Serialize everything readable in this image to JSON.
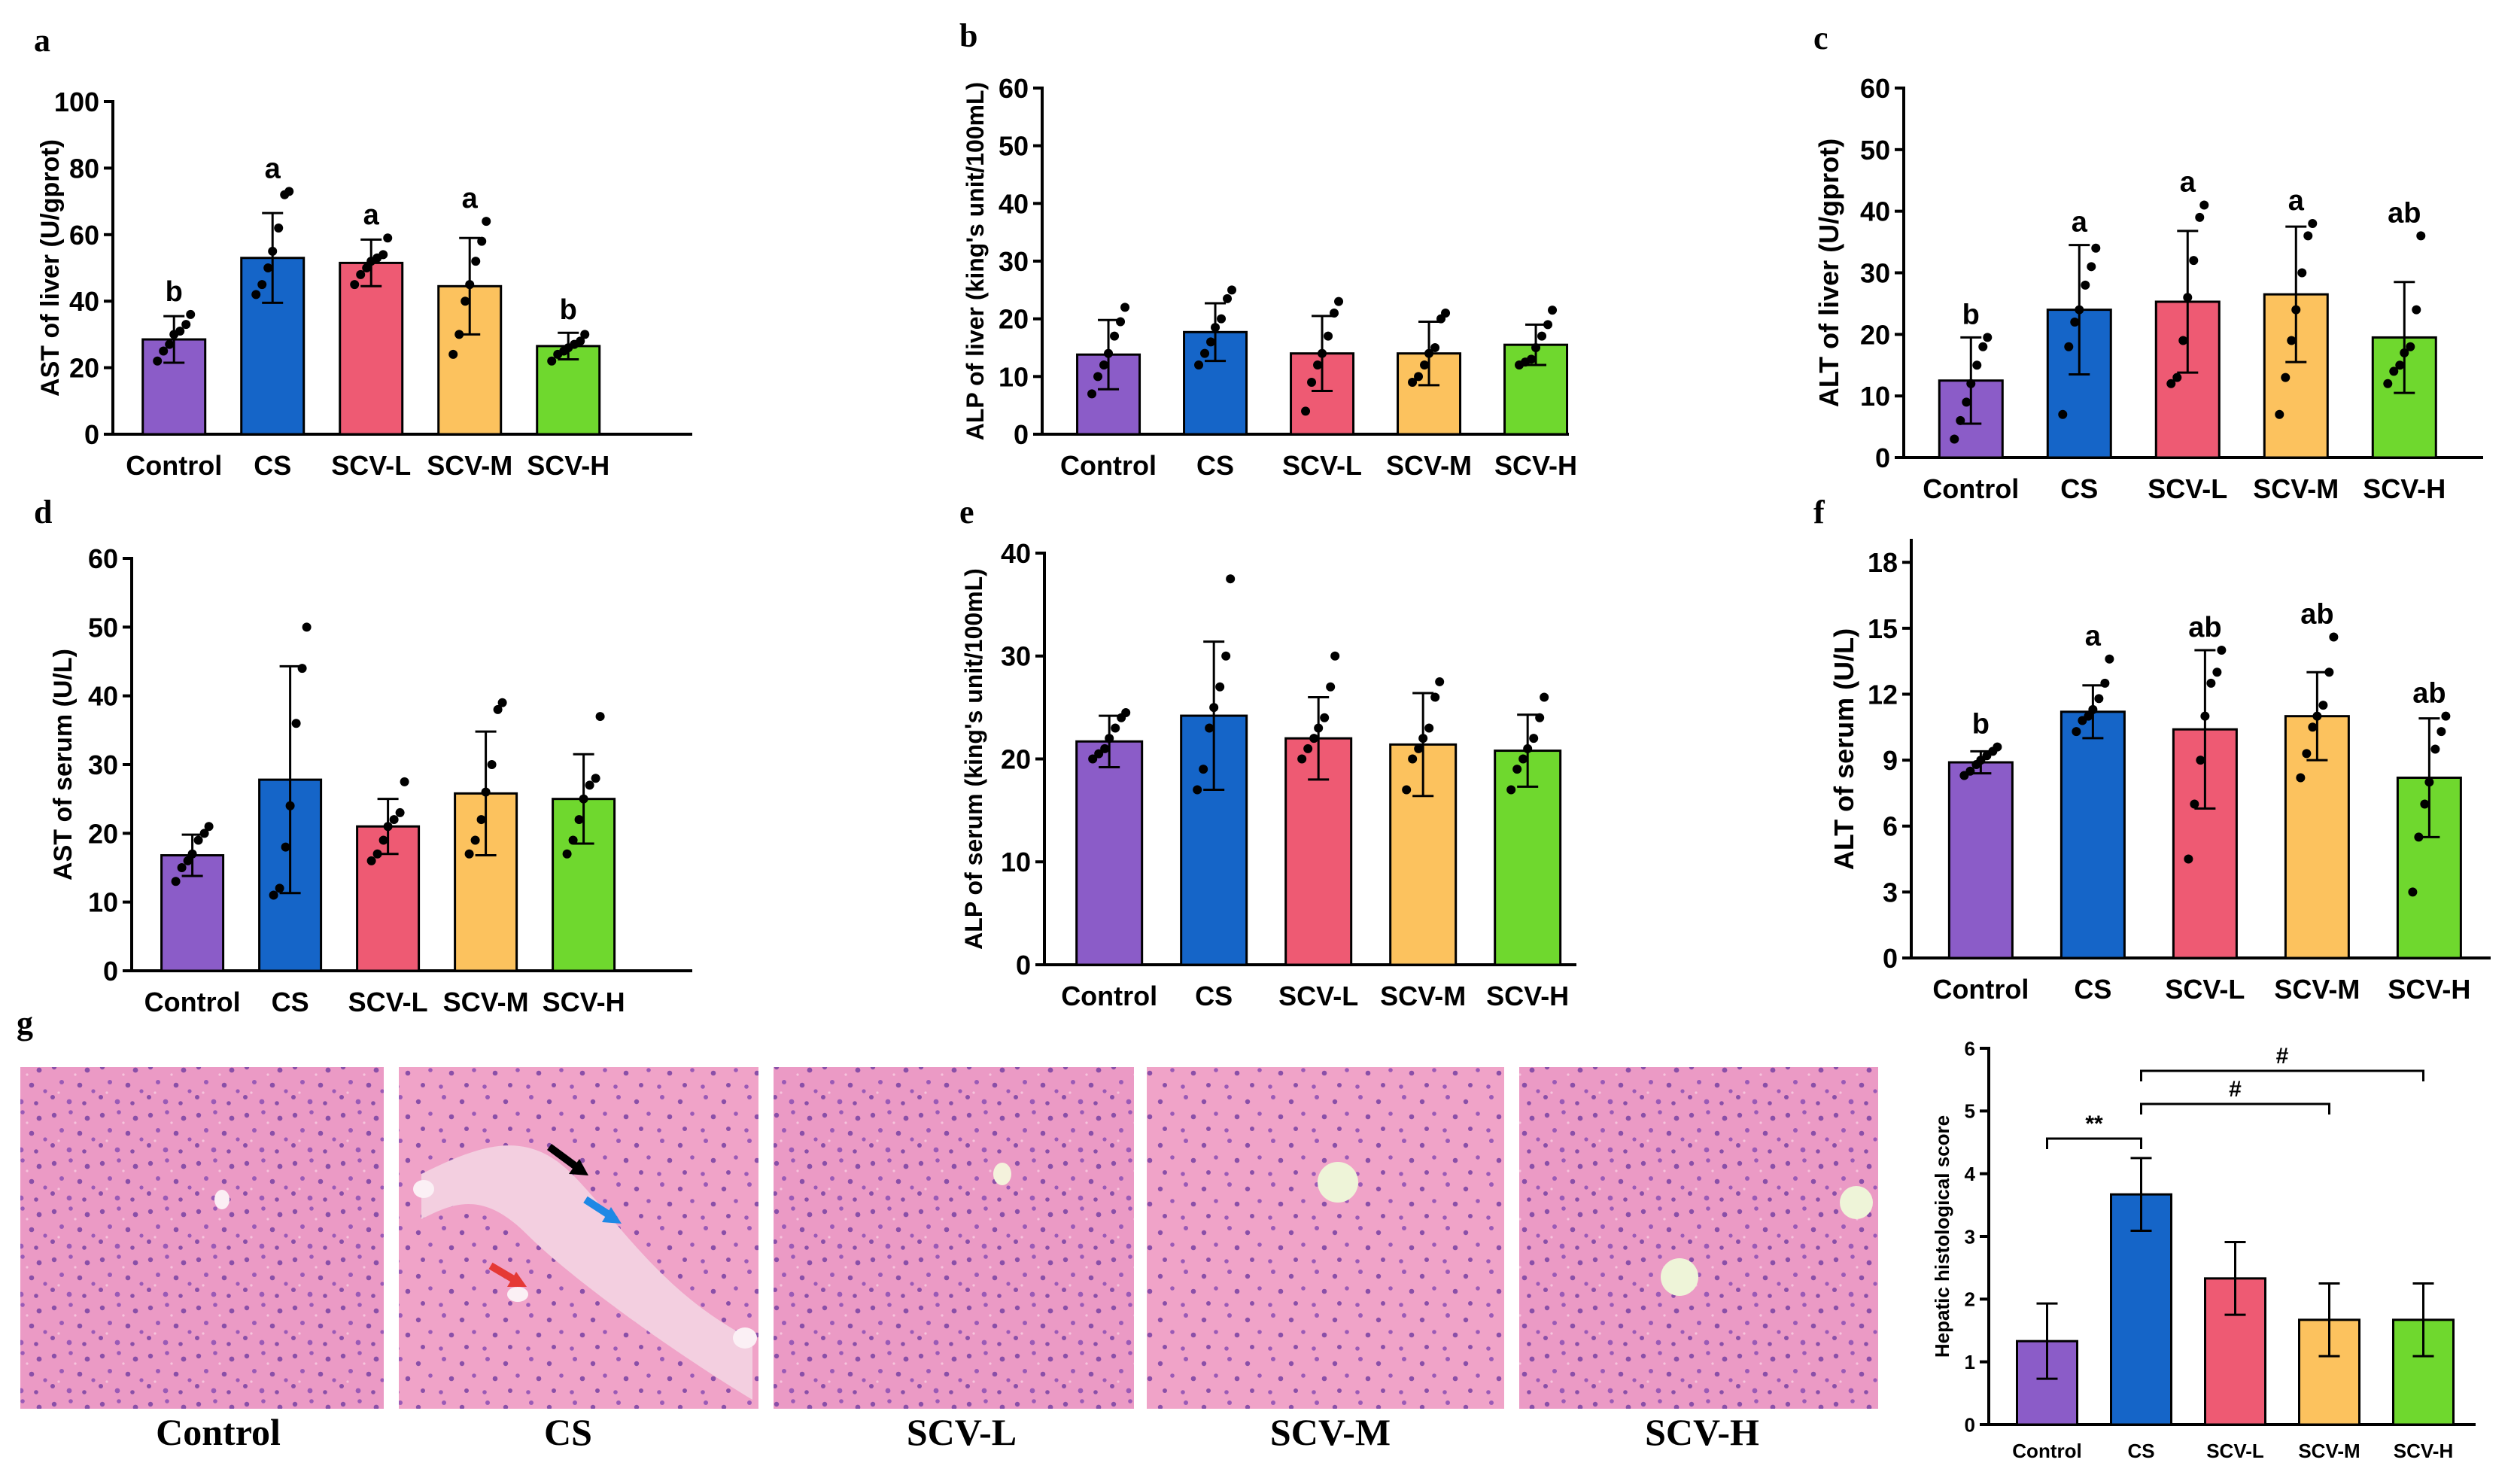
{
  "colors": {
    "Control": "#8B5CC8",
    "CS": "#1565C8",
    "SCV-L": "#EE5A73",
    "SCV-M": "#FCC25E",
    "SCV-H": "#6FD82E"
  },
  "chart_data": [
    {
      "id": "a",
      "letter": "a",
      "type": "bar",
      "categories": [
        "Control",
        "CS",
        "SCV-L",
        "SCV-M",
        "SCV-H"
      ],
      "values": [
        28.5,
        53,
        51.5,
        44.5,
        26.5
      ],
      "errors": [
        7,
        13.5,
        7,
        14.5,
        4
      ],
      "points": [
        [
          22,
          25,
          27,
          30,
          31,
          33,
          36
        ],
        [
          42,
          45,
          50,
          55,
          62,
          72,
          73
        ],
        [
          45,
          48,
          50,
          52,
          53,
          54,
          59
        ],
        [
          24,
          30,
          40,
          45,
          52,
          58,
          64
        ],
        [
          22,
          24,
          25,
          26,
          27,
          28,
          30
        ]
      ],
      "sig": [
        "b",
        "a",
        "a",
        "a",
        "b"
      ],
      "ylabel": "AST of liver (U/gprot)",
      "ylim": [
        0,
        100
      ],
      "yticks": [
        0,
        20,
        40,
        60,
        80,
        100
      ]
    },
    {
      "id": "b",
      "letter": "b",
      "type": "bar",
      "categories": [
        "Control",
        "CS",
        "SCV-L",
        "SCV-M",
        "SCV-H"
      ],
      "values": [
        13.8,
        17.7,
        14,
        14,
        15.5
      ],
      "errors": [
        6,
        5,
        6.5,
        5.5,
        3.5
      ],
      "points": [
        [
          7,
          10,
          12,
          14,
          17,
          19.5,
          22
        ],
        [
          12,
          14,
          16,
          18.5,
          20,
          23.5,
          25
        ],
        [
          4,
          9,
          12,
          14,
          17,
          21,
          23
        ],
        [
          9,
          10,
          12,
          14,
          15,
          20,
          21
        ],
        [
          12,
          12.5,
          13,
          15,
          17,
          19,
          21.5
        ]
      ],
      "sig": [
        "",
        "",
        "",
        "",
        ""
      ],
      "ylabel": "ALP of liver (king's unit/100mL)",
      "ylim": [
        0,
        60
      ],
      "yticks": [
        0,
        10,
        20,
        30,
        40,
        50,
        60
      ]
    },
    {
      "id": "c",
      "letter": "c",
      "type": "bar",
      "categories": [
        "Control",
        "CS",
        "SCV-L",
        "SCV-M",
        "SCV-H"
      ],
      "values": [
        12.5,
        24,
        25.3,
        26.5,
        19.5
      ],
      "errors": [
        7,
        10.5,
        11.5,
        11,
        9
      ],
      "points": [
        [
          3,
          6,
          9,
          12,
          15,
          18,
          19.5
        ],
        [
          7,
          18,
          22,
          24,
          28,
          31,
          34
        ],
        [
          12,
          13,
          19,
          26,
          32,
          39,
          41
        ],
        [
          7,
          13,
          19,
          24,
          30,
          36,
          38
        ],
        [
          12,
          14,
          15,
          17,
          18,
          24,
          36
        ]
      ],
      "sig": [
        "b",
        "a",
        "a",
        "a",
        "ab"
      ],
      "ylabel": "ALT of liver (U/gprot)",
      "ylim": [
        0,
        60
      ],
      "yticks": [
        0,
        10,
        20,
        30,
        40,
        50,
        60
      ]
    },
    {
      "id": "d",
      "letter": "d",
      "type": "bar",
      "categories": [
        "Control",
        "CS",
        "SCV-L",
        "SCV-M",
        "SCV-H"
      ],
      "values": [
        16.8,
        27.8,
        21,
        25.8,
        25
      ],
      "errors": [
        3,
        16.5,
        4,
        9,
        6.5
      ],
      "points": [
        [
          13,
          15,
          16,
          17,
          19,
          20,
          21
        ],
        [
          11,
          12,
          18,
          24,
          36,
          44,
          50
        ],
        [
          16,
          17,
          19,
          21,
          22,
          23,
          27.5
        ],
        [
          17,
          19,
          22,
          26,
          30,
          38,
          39
        ],
        [
          17,
          19,
          22,
          25,
          27,
          28,
          37
        ]
      ],
      "sig": [
        "",
        "",
        "",
        "",
        ""
      ],
      "ylabel": "AST of serum (U/L)",
      "ylim": [
        0,
        60
      ],
      "yticks": [
        0,
        10,
        20,
        30,
        40,
        50,
        60
      ]
    },
    {
      "id": "e",
      "letter": "e",
      "type": "bar",
      "categories": [
        "Control",
        "CS",
        "SCV-L",
        "SCV-M",
        "SCV-H"
      ],
      "values": [
        21.7,
        24.2,
        22,
        21.4,
        20.8
      ],
      "errors": [
        2.5,
        7.2,
        4,
        5,
        3.5
      ],
      "points": [
        [
          20,
          20.5,
          21,
          22,
          23,
          24,
          24.5
        ],
        [
          17,
          19,
          23,
          25,
          27,
          30,
          37.5
        ],
        [
          20,
          21,
          22,
          23,
          24,
          27,
          30
        ],
        [
          17,
          20,
          21,
          22,
          23,
          26,
          27.5
        ],
        [
          17,
          19,
          20,
          21,
          22,
          24,
          26
        ]
      ],
      "sig": [
        "",
        "",
        "",
        "",
        ""
      ],
      "ylabel": "ALP of serum (king's unit/100mL)",
      "ylim": [
        0,
        40
      ],
      "yticks": [
        0,
        10,
        20,
        30,
        40
      ]
    },
    {
      "id": "f",
      "letter": "f",
      "type": "bar",
      "categories": [
        "Control",
        "CS",
        "SCV-L",
        "SCV-M",
        "SCV-H"
      ],
      "values": [
        8.9,
        11.2,
        10.4,
        11,
        8.2
      ],
      "errors": [
        0.5,
        1.2,
        3.6,
        2,
        2.7
      ],
      "points": [
        [
          8.3,
          8.5,
          8.8,
          9,
          9.2,
          9.4,
          9.6
        ],
        [
          10.3,
          10.8,
          11,
          11.3,
          11.8,
          12.5,
          13.6
        ],
        [
          4.5,
          7,
          9,
          11,
          12.5,
          13,
          14
        ],
        [
          8.2,
          9.3,
          10.5,
          11,
          11.5,
          13,
          14.6
        ],
        [
          3,
          5.5,
          7,
          8,
          9.5,
          10.3,
          11
        ]
      ],
      "sig": [
        "b",
        "a",
        "ab",
        "ab",
        "ab"
      ],
      "ylabel": "ALT of serum (U/L)",
      "ylim": [
        0,
        19
      ],
      "yticks": [
        0,
        3,
        6,
        9,
        12,
        15,
        18
      ]
    },
    {
      "id": "g",
      "letter": "",
      "type": "bar",
      "categories": [
        "Control",
        "CS",
        "SCV-L",
        "SCV-M",
        "SCV-H"
      ],
      "values": [
        1.33,
        3.67,
        2.33,
        1.67,
        1.67
      ],
      "errors": [
        0.6,
        0.58,
        0.58,
        0.58,
        0.58
      ],
      "points": [
        [],
        [],
        [],
        [],
        []
      ],
      "sig": [
        "",
        "",
        "",
        "",
        ""
      ],
      "ylabel": "Hepatic histological score",
      "ylim": [
        0,
        6
      ],
      "yticks": [
        0,
        1,
        2,
        3,
        4,
        5,
        6
      ],
      "brackets": [
        {
          "from": 0,
          "to": 1,
          "label": "**"
        },
        {
          "from": 1,
          "to": 3,
          "label": "#"
        },
        {
          "from": 1,
          "to": 4,
          "label": "#"
        }
      ]
    }
  ],
  "panel_g": {
    "letter": "g",
    "images": [
      "Control",
      "CS",
      "SCV-L",
      "SCV-M",
      "SCV-H"
    ]
  }
}
